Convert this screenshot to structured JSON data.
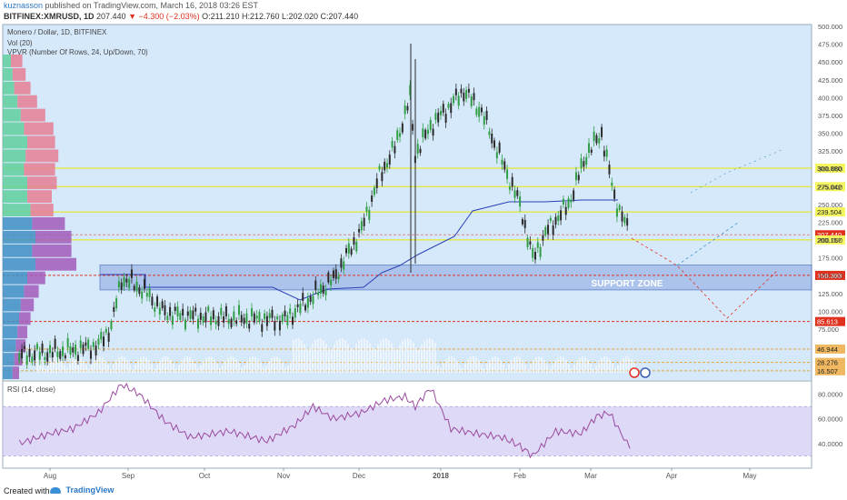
{
  "header": {
    "author": "kuznasson",
    "published_text": "published on TradingView.com, March 16, 2018 03:26 EST",
    "symbol_line": "BITFINEX:XMRUSD, 1D",
    "last": "207.440",
    "change": "−4.300 (−2.03%)",
    "ohlc": "O:211.210 H:212.760 L:202.020 C:207.440"
  },
  "legend": {
    "title": "Monero / Dollar, 1D, BITFINEX",
    "vol": "Vol (20)",
    "vpvr": "VPVR (Number Of Rows, 24, Up/Down, 70)",
    "rsi": "RSI (14, close)"
  },
  "annotations": {
    "support_zone": "SUPPORT ZONE"
  },
  "footer": {
    "created_with": "Created with",
    "brand": "TradingView"
  },
  "colors": {
    "chart_bg": "#d6e9fb",
    "up": "#2f9e44",
    "down": "#2b2b2b",
    "support_zone": "#9fb8e6",
    "red_line": "#e0311f",
    "yellow_line": "#e6e600",
    "orange_line": "#e8a43a",
    "vpvr_up": "#5fcf9c",
    "vpvr_down": "#e67e93",
    "vpvr_blue": "#3f8fc4",
    "vpvr_purple": "#a25ab8",
    "rsi_line": "#9b4a9e",
    "rsi_band": "#c7c0f0"
  },
  "chart_data": [
    {
      "type": "line",
      "title": "Monero / Dollar, 1D, BITFINEX",
      "xlabel": "",
      "ylabel": "",
      "x_ticks": [
        "Aug",
        "Sep",
        "Oct",
        "Nov",
        "Dec",
        "2018",
        "Feb",
        "Mar",
        "Apr",
        "May"
      ],
      "y_ticks": [
        "500.000",
        "475.000",
        "450.000",
        "425.000",
        "400.000",
        "375.000",
        "350.000",
        "325.000",
        "300.000",
        "275.000",
        "250.000",
        "225.000",
        "200.000",
        "175.000",
        "150.000",
        "125.000",
        "100.000",
        "75.000"
      ],
      "ylim": [
        0,
        500
      ],
      "price_path": {
        "name": "XMRUSD close (approx.)",
        "x": [
          "Jul 20",
          "Aug 1",
          "Aug 10",
          "Aug 20",
          "Aug 25",
          "Aug 29",
          "Sep 2",
          "Sep 8",
          "Sep 14",
          "Sep 20",
          "Oct 1",
          "Oct 15",
          "Nov 1",
          "Nov 10",
          "Nov 20",
          "Dec 1",
          "Dec 8",
          "Dec 14",
          "Dec 20",
          "Dec 22",
          "Dec 28",
          "Jan 5",
          "Jan 10",
          "Jan 17",
          "Jan 25",
          "Feb 1",
          "Feb 6",
          "Feb 12",
          "Feb 20",
          "Feb 27",
          "Mar 5",
          "Mar 10",
          "Mar 16"
        ],
        "values": [
          38,
          42,
          45,
          52,
          80,
          145,
          140,
          125,
          100,
          95,
          92,
          90,
          88,
          115,
          145,
          215,
          290,
          330,
          400,
          320,
          360,
          390,
          410,
          380,
          310,
          250,
          175,
          215,
          250,
          320,
          350,
          260,
          207.44
        ]
      },
      "horizontal_levels": [
        {
          "label": "300.880",
          "value": 300.88,
          "color": "yellow"
        },
        {
          "label": "275.042",
          "value": 275.042,
          "color": "yellow"
        },
        {
          "label": "239.504",
          "value": 239.504,
          "color": "yellow"
        },
        {
          "label": "207.440",
          "value": 207.44,
          "color": "red",
          "note": "last price"
        },
        {
          "label": "200.157",
          "value": 200.157,
          "color": "yellow"
        },
        {
          "label": "150.393",
          "value": 150.393,
          "color": "red"
        },
        {
          "label": "85.613",
          "value": 85.613,
          "color": "red"
        },
        {
          "label": "46.944",
          "value": 46.944,
          "color": "orange"
        },
        {
          "label": "28.276",
          "value": 28.276,
          "color": "orange"
        },
        {
          "label": "16.507",
          "value": 16.507,
          "color": "orange"
        }
      ],
      "support_zone": {
        "low": 130,
        "high": 165,
        "label": "SUPPORT ZONE"
      }
    },
    {
      "type": "line",
      "title": "RSI (14, close)",
      "y_ticks": [
        "80.0000",
        "60.0000",
        "40.0000"
      ],
      "ylim": [
        20,
        90
      ],
      "band": [
        30,
        70
      ],
      "series": [
        {
          "name": "RSI",
          "x": [
            "Jul 20",
            "Aug 1",
            "Aug 10",
            "Aug 20",
            "Aug 29",
            "Sep 5",
            "Sep 15",
            "Sep 25",
            "Oct 10",
            "Oct 25",
            "Nov 5",
            "Nov 12",
            "Nov 20",
            "Dec 1",
            "Dec 10",
            "Dec 18",
            "Dec 22",
            "Dec 28",
            "Jan 5",
            "Jan 15",
            "Jan 25",
            "Feb 1",
            "Feb 6",
            "Feb 15",
            "Feb 25",
            "Mar 3",
            "Mar 8",
            "Mar 16"
          ],
          "values": [
            40,
            48,
            52,
            65,
            88,
            80,
            58,
            45,
            50,
            42,
            55,
            70,
            60,
            65,
            75,
            78,
            70,
            85,
            52,
            48,
            45,
            38,
            30,
            50,
            48,
            62,
            65,
            36
          ]
        }
      ]
    }
  ]
}
